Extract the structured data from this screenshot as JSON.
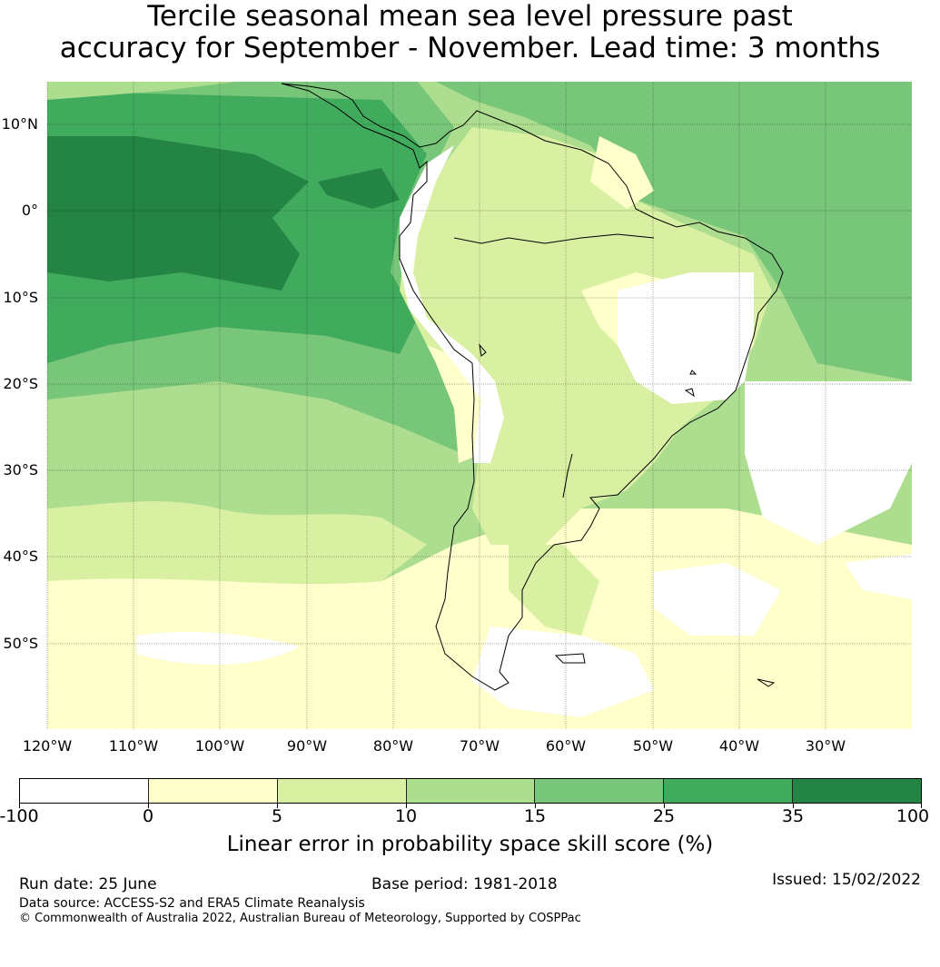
{
  "title": {
    "line1": "Tercile seasonal mean sea level pressure past",
    "line2": "accuracy for September - November. Lead time: 3 months"
  },
  "map": {
    "lat_labels": [
      "10°N",
      "0°",
      "10°S",
      "20°S",
      "30°S",
      "40°S",
      "50°S"
    ],
    "lon_labels": [
      "120°W",
      "110°W",
      "100°W",
      "90°W",
      "80°W",
      "70°W",
      "60°W",
      "50°W",
      "40°W",
      "30°W"
    ],
    "region": "South America",
    "grid_lines": true,
    "coastline": true
  },
  "colorbar": {
    "ticks": [
      "-100",
      "0",
      "5",
      "10",
      "15",
      "25",
      "35",
      "100"
    ],
    "colors": [
      "#ffffff",
      "#ffffcc",
      "#d9f0a3",
      "#addd8e",
      "#78c679",
      "#41ab5d",
      "#238443"
    ],
    "label": "Linear error in probability space skill score (%)"
  },
  "footer": {
    "run_date": "Run date: 25 June",
    "base_period": "Base period: 1981-2018",
    "issued": "Issued: 15/02/2022",
    "data_source": "Data source: ACCESS-S2 and ERA5 Climate Reanalysis",
    "copyright": "© Commonwealth of Australia 2022, Australian Bureau of Meteorology, Supported by COSPPac"
  }
}
